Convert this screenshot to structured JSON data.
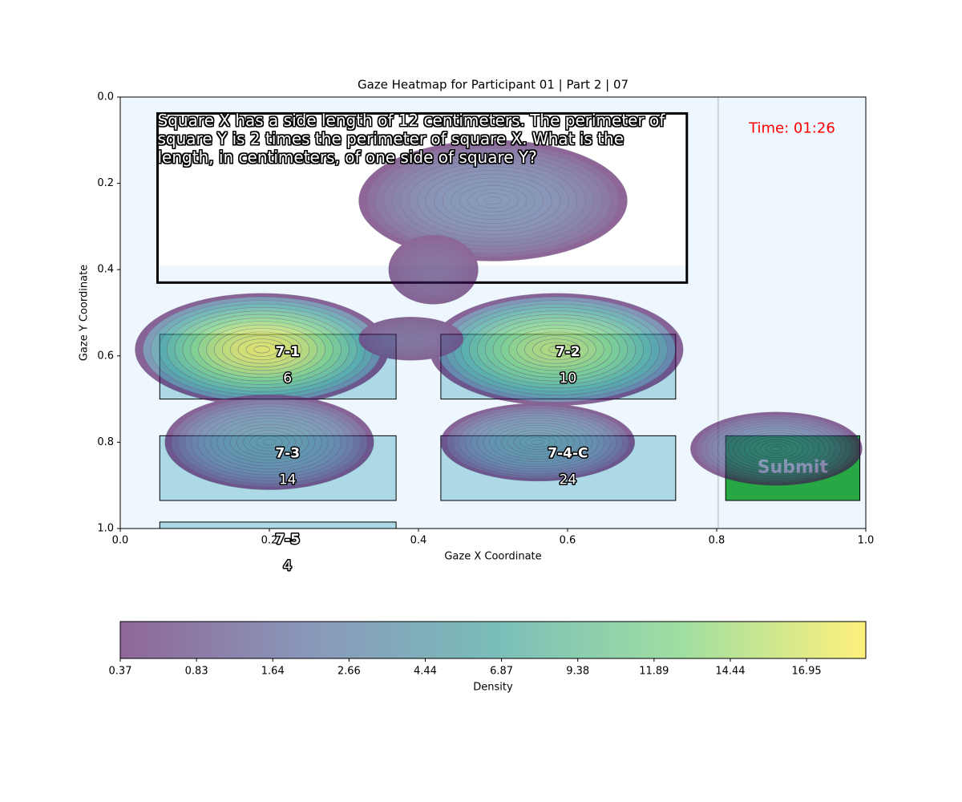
{
  "chart_data": {
    "type": "gaze-heatmap",
    "title": "Gaze Heatmap for Participant 01 | Part 2 | 07",
    "xlabel": "Gaze X Coordinate",
    "ylabel": "Gaze Y Coordinate",
    "xlim": [
      0,
      1
    ],
    "ylim": [
      0,
      1
    ],
    "y_inverted": true,
    "xticks": [
      {
        "value": 0,
        "label": "0.0"
      },
      0.2,
      0.4,
      0.6,
      0.8,
      {
        "value": 1,
        "label": "1.0"
      }
    ],
    "yticks": [
      {
        "value": 0,
        "label": "0.0"
      },
      0.2,
      0.4,
      0.6,
      0.8,
      {
        "value": 1,
        "label": "1.0"
      }
    ],
    "question": "Square X has a side length of 12 centimeters. The perimeter of square Y is 2 times the perimeter of square X. What is the length, in centimeters, of one side of square Y?",
    "timer": "Time: 01:26",
    "areas": [
      {
        "label": "7-1",
        "count": 6,
        "x": [
          0.053,
          0.37
        ],
        "y": [
          0.55,
          0.7
        ],
        "color": "#add8e6"
      },
      {
        "label": "7-2",
        "count": 10,
        "x": [
          0.43,
          0.745
        ],
        "y": [
          0.55,
          0.7
        ],
        "color": "#add8e6"
      },
      {
        "label": "7-3",
        "count": 14,
        "x": [
          0.053,
          0.37
        ],
        "y": [
          0.785,
          0.935
        ],
        "color": "#add8e6"
      },
      {
        "label": "7-4-C",
        "count": 24,
        "x": [
          0.43,
          0.745
        ],
        "y": [
          0.785,
          0.935
        ],
        "color": "#add8e6"
      },
      {
        "label": "7-5",
        "count": 4,
        "x": [
          0.053,
          0.37
        ],
        "y": [
          0.985,
          1.135
        ],
        "color": "#add8e6"
      },
      {
        "label": "Submit",
        "x": [
          0.812,
          0.992
        ],
        "y": [
          0.785,
          0.935
        ],
        "color": "#28a745"
      }
    ],
    "hotspots": [
      {
        "x": 0.19,
        "y": 0.585,
        "peak": 18.9,
        "spread": [
          0.17,
          0.13
        ]
      },
      {
        "x": 0.585,
        "y": 0.585,
        "peak": 16.0,
        "spread": [
          0.17,
          0.13
        ]
      },
      {
        "x": 0.2,
        "y": 0.8,
        "peak": 4.0,
        "spread": [
          0.14,
          0.11
        ]
      },
      {
        "x": 0.56,
        "y": 0.8,
        "peak": 4.0,
        "spread": [
          0.13,
          0.09
        ]
      },
      {
        "x": 0.88,
        "y": 0.815,
        "peak": 3.0,
        "spread": [
          0.115,
          0.085
        ]
      },
      {
        "x": 0.5,
        "y": 0.24,
        "peak": 2.5,
        "spread": [
          0.18,
          0.14
        ]
      },
      {
        "x": 0.42,
        "y": 0.4,
        "peak": 0.8,
        "spread": [
          0.06,
          0.08
        ]
      },
      {
        "x": 0.39,
        "y": 0.56,
        "peak": 0.9,
        "spread": [
          0.07,
          0.05
        ]
      }
    ],
    "colorbar": {
      "label": "Density",
      "lim": [
        0.37,
        18.9
      ],
      "ticks": [
        0.37,
        0.83,
        1.64,
        2.66,
        4.44,
        6.87,
        9.38,
        11.89,
        14.44,
        16.95
      ],
      "colormap": [
        "#440154",
        "#3b528b",
        "#21918c",
        "#5ec962",
        "#fde725"
      ],
      "alpha": 0.6
    }
  }
}
